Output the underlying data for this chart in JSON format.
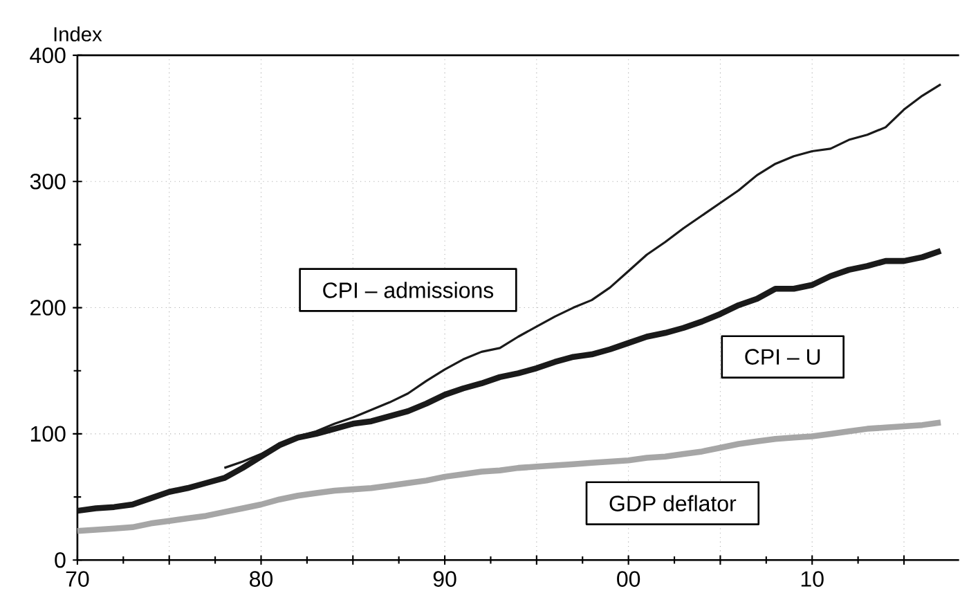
{
  "chart_data": {
    "type": "line",
    "ylabel": "Index",
    "x": [
      1970,
      1971,
      1972,
      1973,
      1974,
      1975,
      1976,
      1977,
      1978,
      1979,
      1980,
      1981,
      1982,
      1983,
      1984,
      1985,
      1986,
      1987,
      1988,
      1989,
      1990,
      1991,
      1992,
      1993,
      1994,
      1995,
      1996,
      1997,
      1998,
      1999,
      2000,
      2001,
      2002,
      2003,
      2004,
      2005,
      2006,
      2007,
      2008,
      2009,
      2010,
      2011,
      2012,
      2013,
      2014,
      2015,
      2016,
      2017
    ],
    "series": [
      {
        "name": "CPI – admissions",
        "color": "#1a1a1a",
        "values": [
          null,
          null,
          null,
          null,
          null,
          null,
          null,
          null,
          73,
          78,
          84,
          92,
          98,
          102,
          108,
          113,
          119,
          125,
          132,
          142,
          151,
          159,
          165,
          168,
          177,
          185,
          193,
          200,
          206,
          216,
          229,
          242,
          252,
          263,
          273,
          283,
          293,
          305,
          314,
          320,
          324,
          326,
          333,
          337,
          343,
          357,
          368,
          377
        ]
      },
      {
        "name": "CPI – U",
        "color": "#1a1a1a",
        "values": [
          39,
          41,
          42,
          44,
          49,
          54,
          57,
          61,
          65,
          73,
          82,
          91,
          97,
          100,
          104,
          108,
          110,
          114,
          118,
          124,
          131,
          136,
          140,
          145,
          148,
          152,
          157,
          161,
          163,
          167,
          172,
          177,
          180,
          184,
          189,
          195,
          202,
          207,
          215,
          215,
          218,
          225,
          230,
          233,
          237,
          237,
          240,
          245
        ]
      },
      {
        "name": "GDP deflator",
        "color": "#a6a6a6",
        "values": [
          23,
          24,
          25,
          26,
          29,
          31,
          33,
          35,
          38,
          41,
          44,
          48,
          51,
          53,
          55,
          56,
          57,
          59,
          61,
          63,
          66,
          68,
          70,
          71,
          73,
          74,
          75,
          76,
          77,
          78,
          79,
          81,
          82,
          84,
          86,
          89,
          92,
          94,
          96,
          97,
          98,
          100,
          102,
          104,
          105,
          106,
          107,
          109
        ]
      }
    ],
    "xlim": [
      1970,
      2018
    ],
    "ylim": [
      0,
      400
    ],
    "xticks": [
      {
        "value": 1970,
        "label": "70"
      },
      {
        "value": 1975,
        "label": null
      },
      {
        "value": 1980,
        "label": "80"
      },
      {
        "value": 1985,
        "label": null
      },
      {
        "value": 1990,
        "label": "90"
      },
      {
        "value": 1995,
        "label": null
      },
      {
        "value": 2000,
        "label": "00"
      },
      {
        "value": 2005,
        "label": null
      },
      {
        "value": 2010,
        "label": "10"
      },
      {
        "value": 2015,
        "label": null
      }
    ],
    "yticks": [
      0,
      100,
      200,
      300,
      400
    ],
    "grid": true,
    "marker": "none",
    "line_style": "solid"
  }
}
